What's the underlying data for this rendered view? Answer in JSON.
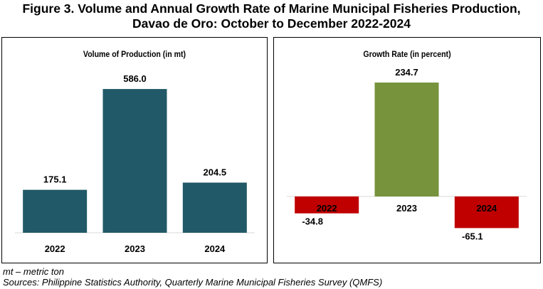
{
  "figure": {
    "title_line1": "Figure 3. Volume and Annual Growth Rate of Marine Municipal Fisheries Production,",
    "title_line2": "Davao de Oro: October to December 2022-2024"
  },
  "chart_data": [
    {
      "type": "bar",
      "title": "Volume of Production (in mt)",
      "categories": [
        "2022",
        "2023",
        "2024"
      ],
      "values": [
        175.1,
        586.0,
        204.5
      ],
      "value_labels": [
        "175.1",
        "586.0",
        "204.5"
      ],
      "ylim": [
        0,
        650
      ],
      "grid": false,
      "colors": {
        "bar": "#215968"
      }
    },
    {
      "type": "bar",
      "title": "Growth Rate (in percent)",
      "categories": [
        "2022",
        "2023",
        "2024"
      ],
      "values": [
        -34.8,
        234.7,
        -65.1
      ],
      "value_labels": [
        "-34.8",
        "234.7",
        "-65.1"
      ],
      "ylim": [
        -80,
        250
      ],
      "grid": false,
      "colors": {
        "positive": "#77933C",
        "negative": "#C00000"
      }
    }
  ],
  "notes": {
    "units": "mt – metric ton",
    "source": "Sources: Philippine Statistics Authority, Quarterly Marine Municipal Fisheries Survey (QMFS)"
  }
}
